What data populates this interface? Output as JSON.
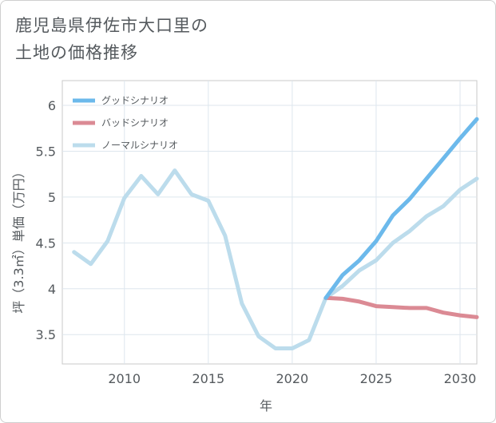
{
  "title_lines": [
    "鹿児島県伊佐市大口里の",
    "土地の価格推移"
  ],
  "chart_data": {
    "type": "line",
    "xlabel": "年",
    "ylabel": "坪（3.3㎡）単価（万円）",
    "xlim": [
      2006.3,
      2031
    ],
    "ylim": [
      3.18,
      6.27
    ],
    "x_ticks": [
      2010,
      2015,
      2020,
      2025,
      2030
    ],
    "y_ticks": [
      3.5,
      4,
      4.5,
      5,
      5.5,
      6
    ],
    "grid": true,
    "legend_position": "top-left",
    "series": [
      {
        "name": "グッドシナリオ",
        "color": "#6cb9eb",
        "x": [
          2022,
          2023,
          2024,
          2025,
          2026,
          2027,
          2028,
          2029,
          2030,
          2031
        ],
        "y": [
          3.9,
          4.15,
          4.31,
          4.52,
          4.8,
          4.98,
          5.2,
          5.42,
          5.64,
          5.85
        ]
      },
      {
        "name": "バッドシナリオ",
        "color": "#db8a94",
        "x": [
          2022,
          2023,
          2024,
          2025,
          2026,
          2027,
          2028,
          2029,
          2030,
          2031
        ],
        "y": [
          3.9,
          3.89,
          3.86,
          3.81,
          3.8,
          3.79,
          3.79,
          3.74,
          3.71,
          3.69
        ]
      },
      {
        "name": "ノーマルシナリオ",
        "color": "#bcdcec",
        "x": [
          2007,
          2008,
          2009,
          2010,
          2011,
          2012,
          2013,
          2014,
          2015,
          2016,
          2017,
          2018,
          2019,
          2020,
          2021,
          2022,
          2023,
          2024,
          2025,
          2026,
          2027,
          2028,
          2029,
          2030,
          2031
        ],
        "y": [
          4.4,
          4.27,
          4.52,
          4.99,
          5.23,
          5.03,
          5.29,
          5.03,
          4.96,
          4.58,
          3.84,
          3.48,
          3.35,
          3.35,
          3.44,
          3.9,
          4.03,
          4.2,
          4.31,
          4.5,
          4.63,
          4.79,
          4.9,
          5.08,
          5.2
        ]
      }
    ]
  }
}
